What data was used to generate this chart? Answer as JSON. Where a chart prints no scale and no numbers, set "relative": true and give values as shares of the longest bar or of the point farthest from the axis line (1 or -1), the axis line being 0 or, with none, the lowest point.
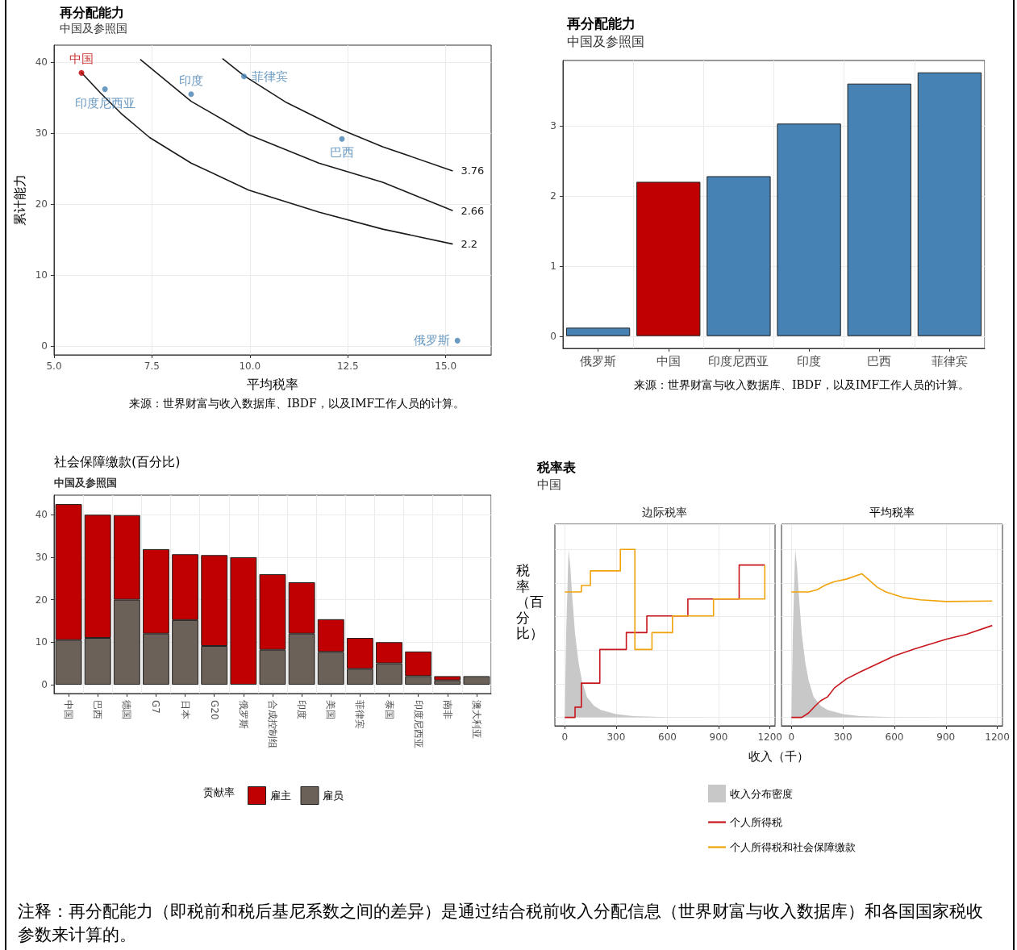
{
  "chart_data": [
    {
      "type": "scatter",
      "title": "再分配能力",
      "subtitle": "中国及参照国",
      "xlabel": "平均税率",
      "ylabel": "累计能力",
      "annotations": [
        "来源：世界财富与收入数据库、IBDF，以及IMF工作人员的计算。",
        "注释：再分配能力（即税前和税后基尼系数之间的差异）是通过结合税前收入分配信息（世界财富与收入数据库）和各国国家税收参数来计算的。"
      ],
      "xlim": [
        5,
        16.16
      ],
      "xticks": [
        {
          "value": 5,
          "label": "5.0"
        },
        7.5,
        {
          "value": 10,
          "label": "10.0"
        },
        12.5,
        {
          "value": 15,
          "label": "15.0"
        }
      ],
      "ylim": [
        -1.2,
        42.4
      ],
      "yticks": [
        0,
        10,
        20,
        30,
        40
      ],
      "grid": true,
      "legend": false,
      "series": [
        {
          "type": "line",
          "name": "3.76",
          "color": "#1a1a1a",
          "x": [
            9.3,
            9.85,
            10.94,
            12.33,
            13.39,
            15.18
          ],
          "values": [
            40.5,
            38.1,
            34.3,
            30.5,
            28.1,
            24.7
          ]
        },
        {
          "type": "line",
          "name": "2.66",
          "color": "#1a1a1a",
          "x": [
            7.2,
            8.5,
            9.97,
            11.76,
            13.39,
            15.18
          ],
          "values": [
            40.4,
            34.5,
            29.8,
            25.8,
            23.1,
            19.1
          ]
        },
        {
          "type": "line",
          "name": "2.2",
          "color": "#1a1a1a",
          "x": [
            5.69,
            6.18,
            6.71,
            7.44,
            8.5,
            9.97,
            11.76,
            13.39,
            15.18
          ],
          "values": [
            38.6,
            35.7,
            32.8,
            29.4,
            25.8,
            22,
            18.9,
            16.5,
            14.4
          ]
        },
        {
          "name": "中国",
          "color": "#c00000",
          "x": [
            5.7
          ],
          "values": [
            38.5
          ]
        },
        {
          "name": "印度尼西亚",
          "color": "#4682b4",
          "x": [
            6.3
          ],
          "values": [
            36.2
          ]
        },
        {
          "name": "印度",
          "color": "#4682b4",
          "x": [
            8.5
          ],
          "values": [
            35.5
          ]
        },
        {
          "name": "菲律宾",
          "color": "#4682b4",
          "x": [
            9.85
          ],
          "values": [
            38.0
          ]
        },
        {
          "name": "巴西",
          "color": "#4682b4",
          "x": [
            12.35
          ],
          "values": [
            29.2
          ]
        },
        {
          "name": "俄罗斯",
          "color": "#4682b4",
          "x": [
            15.3
          ],
          "values": [
            0.8
          ]
        }
      ]
    },
    {
      "type": "bar",
      "title": "再分配能力",
      "subtitle": "中国及参照国",
      "annotations": [
        "来源：世界财富与收入数据库、IBDF，以及IMF工作人员的计算。"
      ],
      "categories": [
        "俄罗斯",
        "中国",
        "印度尼西亚",
        "印度",
        "巴西",
        "菲律宾"
      ],
      "values": [
        0.12,
        2.2,
        2.28,
        3.03,
        3.6,
        3.76
      ],
      "colors": [
        "#4682b4",
        "#c00000",
        "#4682b4",
        "#4682b4",
        "#4682b4",
        "#4682b4"
      ],
      "ylim": [
        -0.175,
        3.93
      ],
      "yticks": [
        0,
        1,
        2,
        3
      ],
      "grid": true
    },
    {
      "type": "bar",
      "title": "社会保障缴款(百分比)",
      "subtitle": "中国及参照国",
      "legend_title": "贡献率",
      "stacked": true,
      "legend": "bottom",
      "grid": true,
      "ylim": [
        -2.1,
        44.6
      ],
      "yticks": [
        0,
        10,
        20,
        30,
        40
      ],
      "categories": [
        "中国",
        "巴西",
        "德国",
        "G7",
        "日本",
        "G20",
        "俄罗斯",
        "合成控制组",
        "印度",
        "美国",
        "菲律宾",
        "泰国",
        "印度尼西亚",
        "南非",
        "澳大利亚"
      ],
      "series": [
        {
          "name": "雇员",
          "color": "#6b6159",
          "values": [
            10.5,
            11,
            20,
            12,
            15.2,
            9.1,
            null,
            8.2,
            12,
            7.7,
            3.7,
            5,
            2,
            1,
            2
          ]
        },
        {
          "name": "雇主",
          "color": "#c00000",
          "values": [
            32,
            29,
            19.9,
            19.9,
            15.5,
            21.4,
            30,
            17.8,
            12.1,
            7.7,
            7.3,
            5,
            5.8,
            1,
            null
          ]
        }
      ]
    },
    {
      "type": "step",
      "title": "税率表",
      "subtitle": "中国",
      "annotations": [
        "边际税率"
      ],
      "xlabel": "收入（千）",
      "ylabel": "税率（百分比）",
      "relative": true,
      "grid": true,
      "legend": "bottom",
      "tick_labels": "x",
      "xlim": [
        -58,
        1230
      ],
      "xticks": [
        0,
        300,
        600,
        900,
        1200
      ],
      "series": [
        {
          "type": "area",
          "name": "收入分布密度",
          "color": "#c8c8c8",
          "x": [
            0,
            8,
            22,
            32,
            45,
            60,
            80,
            100,
            130,
            170,
            210,
            300,
            400,
            600,
            900
          ],
          "values": [
            0,
            0.5,
            1,
            0.9,
            0.7,
            0.5,
            0.33,
            0.22,
            0.12,
            0.07,
            0.045,
            0.02,
            0.008,
            0.002,
            0
          ]
        },
        {
          "name": "个人所得税",
          "color": "#c8161d",
          "x": [
            0,
            60,
            97,
            205,
            360,
            480,
            720,
            1020,
            1170
          ],
          "values": [
            0,
            0.061,
            0.204,
            0.404,
            0.505,
            0.604,
            0.705,
            0.907,
            0.907
          ]
        },
        {
          "name": "个人所得税和社会保障缴款",
          "color": "#f0a30a",
          "x": [
            0,
            97,
            150,
            325,
            410,
            510,
            630,
            870,
            1170
          ],
          "values": [
            0.747,
            0.785,
            0.872,
            1.0,
            0.404,
            0.505,
            0.604,
            0.705,
            0.907
          ]
        }
      ]
    },
    {
      "type": "line",
      "title": "平均税率",
      "relative": true,
      "grid": true,
      "tick_labels": "x",
      "xlim": [
        -58,
        1230
      ],
      "xticks": [
        0,
        300,
        600,
        900,
        1200
      ],
      "series": [
        {
          "type": "area",
          "color": "#c8c8c8",
          "x": [
            0,
            8,
            22,
            32,
            45,
            60,
            80,
            100,
            130,
            170,
            210,
            300,
            400,
            600,
            900
          ],
          "values": [
            0,
            0.5,
            1,
            0.9,
            0.7,
            0.5,
            0.33,
            0.22,
            0.12,
            0.07,
            0.045,
            0.02,
            0.008,
            0.002,
            0
          ]
        },
        {
          "color": "#c8161d",
          "x": [
            0,
            60,
            100,
            140,
            170,
            210,
            250,
            320,
            400,
            480,
            600,
            720,
            900,
            1020,
            1170
          ],
          "values": [
            0,
            0,
            0.027,
            0.07,
            0.099,
            0.122,
            0.175,
            0.229,
            0.27,
            0.309,
            0.366,
            0.408,
            0.465,
            0.495,
            0.547
          ]
        },
        {
          "color": "#f0a30a",
          "x": [
            0,
            100,
            150,
            200,
            250,
            320,
            410,
            500,
            550,
            650,
            750,
            900,
            1170
          ],
          "values": [
            0.747,
            0.747,
            0.76,
            0.789,
            0.808,
            0.823,
            0.855,
            0.775,
            0.747,
            0.714,
            0.7,
            0.69,
            0.693
          ]
        }
      ]
    }
  ]
}
